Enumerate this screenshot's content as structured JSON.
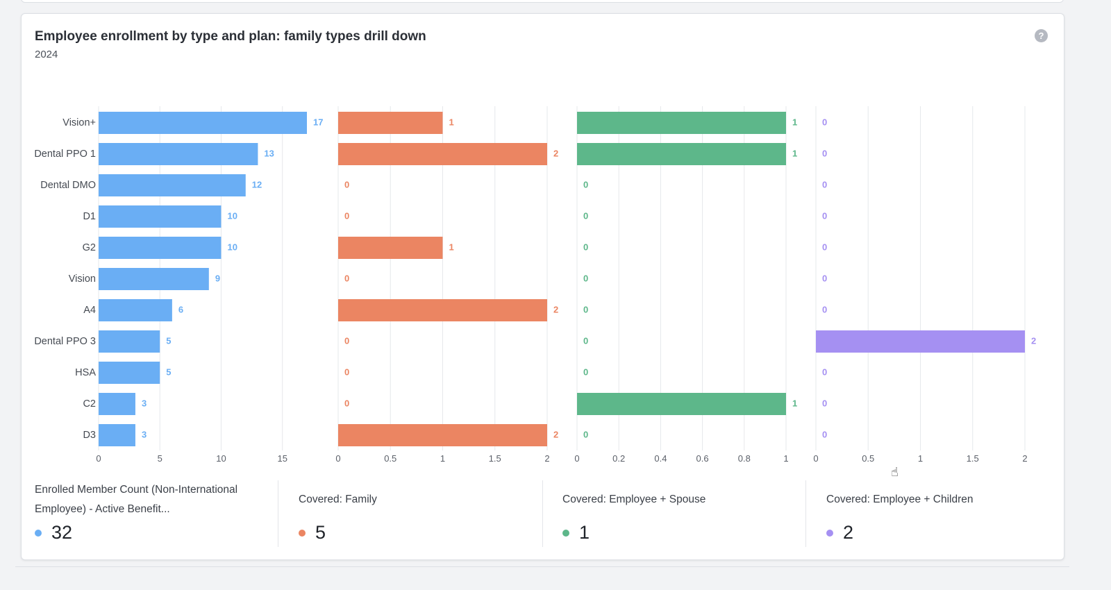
{
  "card": {
    "title": "Employee enrollment by type and plan: family types drill down",
    "subtitle": "2024",
    "help_icon": "question-circle-icon"
  },
  "chart_data": {
    "type": "bar",
    "orientation": "horizontal",
    "title": "Employee enrollment by type and plan: family types drill down",
    "subtitle": "2024",
    "categories": [
      "Vision+",
      "Dental PPO 1",
      "Dental DMO",
      "D1",
      "G2",
      "Vision",
      "A4",
      "Dental PPO 3",
      "HSA",
      "C2",
      "D3"
    ],
    "grid": true,
    "panels": [
      {
        "name": "Enrolled Member Count (Non-International Employee) - Active Benefit...",
        "color": "#6aaef4",
        "values": [
          17,
          13,
          12,
          10,
          10,
          9,
          6,
          5,
          5,
          3,
          3
        ],
        "xlim": [
          0,
          17
        ],
        "ticks": [
          0,
          5,
          10,
          15
        ],
        "tick_labels": [
          "0",
          "5",
          "10",
          "15"
        ],
        "total": "32"
      },
      {
        "name": "Covered: Family",
        "color": "#eb8562",
        "values": [
          1,
          2,
          0,
          0,
          1,
          0,
          2,
          0,
          0,
          0,
          2
        ],
        "xlim": [
          0,
          2
        ],
        "ticks": [
          0,
          0.5,
          1,
          1.5,
          2
        ],
        "tick_labels": [
          "0",
          "0.5",
          "1",
          "1.5",
          "2"
        ],
        "total": "5"
      },
      {
        "name": "Covered: Employee + Spouse",
        "color": "#5db78a",
        "values": [
          1,
          1,
          0,
          0,
          0,
          0,
          0,
          0,
          0,
          1,
          0
        ],
        "xlim": [
          0,
          1
        ],
        "ticks": [
          0,
          0.2,
          0.4,
          0.6,
          0.8,
          1
        ],
        "tick_labels": [
          "0",
          "0.2",
          "0.4",
          "0.6",
          "0.8",
          "1"
        ],
        "total": "1"
      },
      {
        "name": "Covered: Employee + Children",
        "color": "#a590f2",
        "values": [
          0,
          0,
          0,
          0,
          0,
          0,
          0,
          2,
          0,
          0,
          0
        ],
        "xlim": [
          0,
          2
        ],
        "ticks": [
          0,
          0.5,
          1,
          1.5,
          2
        ],
        "tick_labels": [
          "0",
          "0.5",
          "1",
          "1.5",
          "2"
        ],
        "total": "2"
      }
    ]
  }
}
